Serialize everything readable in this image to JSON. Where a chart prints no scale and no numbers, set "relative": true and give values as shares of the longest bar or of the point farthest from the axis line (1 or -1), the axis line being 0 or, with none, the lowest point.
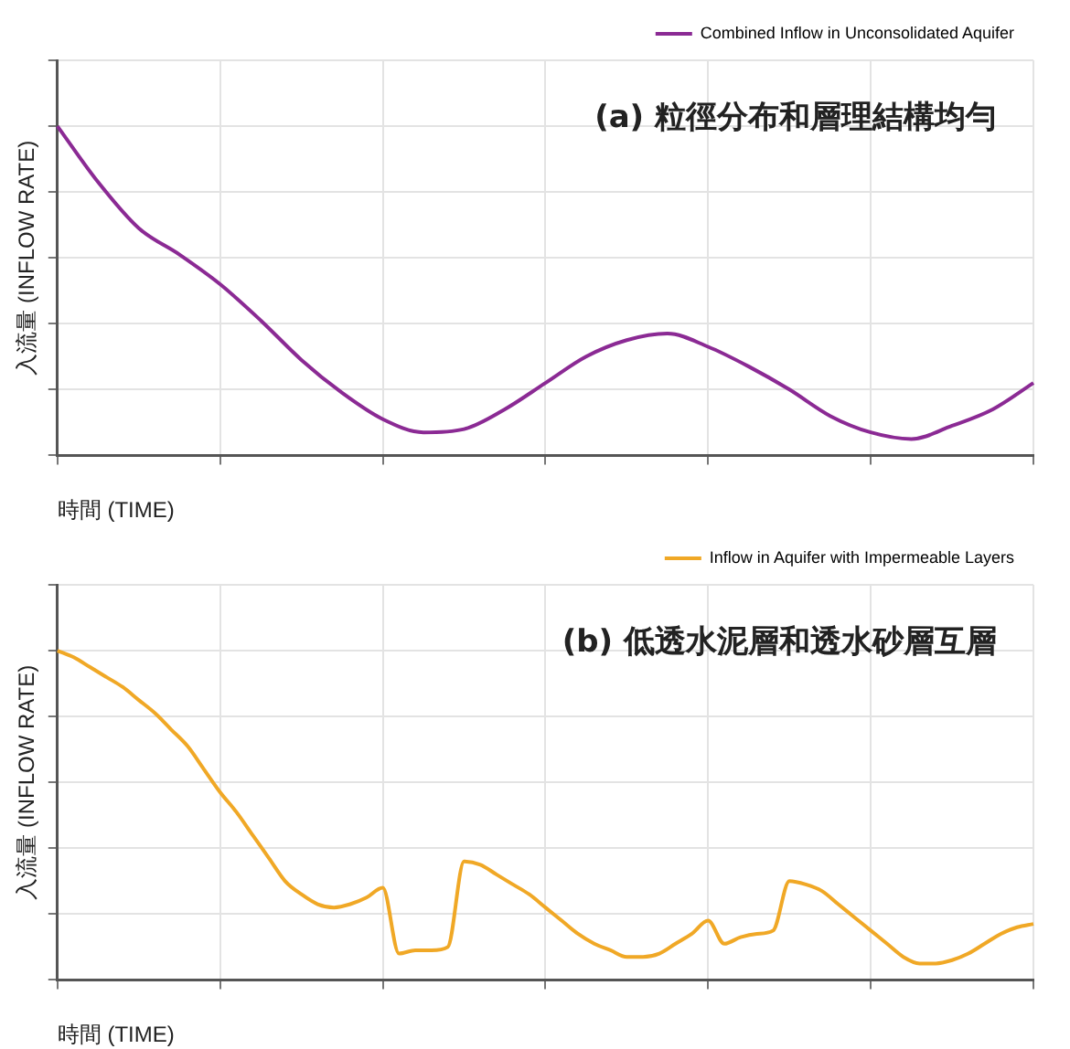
{
  "chart_data": [
    {
      "type": "line",
      "title": "(a) 粒徑分布和層理結構均勻",
      "xlabel": "時間 (TIME)",
      "ylabel": "入流量 (INFLOW RATE)",
      "relative": true,
      "grid": true,
      "legend": "top right",
      "marker": "none",
      "line_style": "solid",
      "categories": [
        null,
        null,
        null,
        null,
        null,
        null,
        null,
        null,
        null,
        null,
        null,
        null,
        null,
        null,
        null,
        null,
        null,
        null,
        null,
        null,
        null,
        null,
        null,
        null,
        null
      ],
      "series": [
        {
          "name": "Combined Inflow in Unconsolidated Aquifer",
          "color": "#8b2a94",
          "values": [
            1.0,
            0.83,
            0.69,
            0.61,
            0.52,
            0.41,
            0.29,
            0.19,
            0.11,
            0.07,
            0.08,
            0.14,
            0.22,
            0.3,
            0.35,
            0.37,
            0.33,
            0.27,
            0.2,
            0.12,
            0.07,
            0.05,
            0.09,
            0.14,
            0.22
          ]
        }
      ]
    },
    {
      "type": "line",
      "title": "(b) 低透水泥層和透水砂層互層",
      "xlabel": "時間 (TIME)",
      "ylabel": "入流量 (INFLOW RATE)",
      "relative": true,
      "grid": true,
      "legend": "top right",
      "marker": "none",
      "line_style": "solid",
      "categories": [
        null,
        null,
        null,
        null,
        null,
        null,
        null,
        null,
        null,
        null,
        null,
        null,
        null,
        null,
        null,
        null,
        null,
        null,
        null,
        null,
        null,
        null,
        null,
        null,
        null,
        null,
        null,
        null,
        null,
        null,
        null,
        null,
        null,
        null,
        null,
        null,
        null,
        null,
        null,
        null,
        null,
        null,
        null,
        null,
        null,
        null,
        null,
        null,
        null,
        null,
        null,
        null,
        null,
        null,
        null,
        null,
        null,
        null,
        null,
        null,
        null
      ],
      "series": [
        {
          "name": "Inflow in Aquifer with Impermeable Layers",
          "color": "#f0a826",
          "values": [
            1.0,
            0.98,
            0.95,
            0.92,
            0.89,
            0.85,
            0.81,
            0.76,
            0.71,
            0.64,
            0.57,
            0.51,
            0.44,
            0.37,
            0.3,
            0.26,
            0.23,
            0.22,
            0.23,
            0.25,
            0.28,
            0.08,
            0.09,
            0.09,
            0.1,
            0.36,
            0.35,
            0.32,
            0.29,
            0.26,
            0.22,
            0.18,
            0.14,
            0.11,
            0.09,
            0.07,
            0.07,
            0.08,
            0.11,
            0.14,
            0.18,
            0.11,
            0.13,
            0.14,
            0.15,
            0.3,
            0.29,
            0.27,
            0.23,
            0.19,
            0.15,
            0.11,
            0.07,
            0.05,
            0.05,
            0.06,
            0.08,
            0.11,
            0.14,
            0.16,
            0.17
          ]
        }
      ]
    }
  ]
}
